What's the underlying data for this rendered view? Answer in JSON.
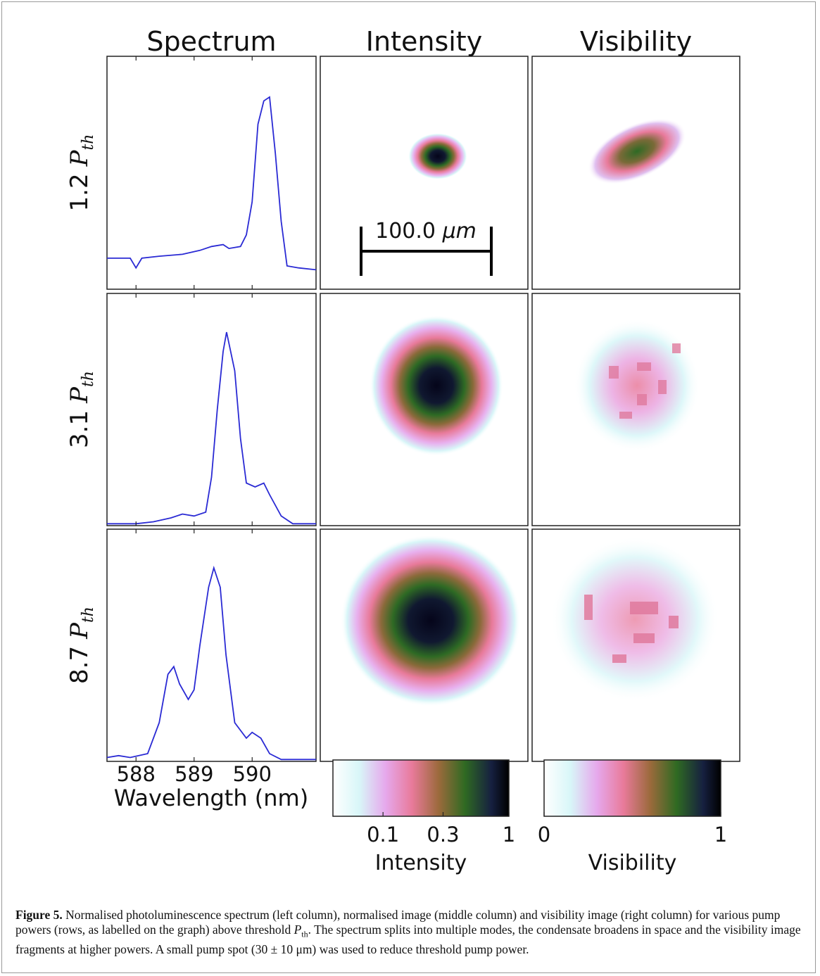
{
  "figure": {
    "column_titles": [
      "Spectrum",
      "Intensity",
      "Visibility"
    ],
    "rows": [
      {
        "label": {
          "number": "1.2",
          "symbol": "P",
          "subscript": "th"
        },
        "spectrum": {
          "x": [
            587.5,
            587.9,
            588.0,
            588.1,
            588.4,
            588.8,
            589.1,
            589.3,
            589.5,
            589.6,
            589.8,
            589.9,
            590.0,
            590.1,
            590.2,
            590.3,
            590.4,
            590.5,
            590.6,
            590.8,
            591.1
          ],
          "values": [
            0.16,
            0.16,
            0.11,
            0.16,
            0.17,
            0.18,
            0.2,
            0.22,
            0.23,
            0.21,
            0.22,
            0.28,
            0.45,
            0.85,
            0.97,
            0.99,
            0.7,
            0.35,
            0.12,
            0.11,
            0.1
          ]
        }
      },
      {
        "label": {
          "number": "3.1",
          "symbol": "P",
          "subscript": "th"
        },
        "spectrum": {
          "x": [
            587.5,
            588.0,
            588.3,
            588.6,
            588.8,
            589.0,
            589.2,
            589.3,
            589.4,
            589.5,
            589.56,
            589.7,
            589.8,
            589.9,
            590.05,
            590.2,
            590.3,
            590.5,
            590.7,
            591.1
          ],
          "values": [
            0.01,
            0.01,
            0.02,
            0.04,
            0.06,
            0.05,
            0.07,
            0.25,
            0.6,
            0.9,
            1.0,
            0.8,
            0.45,
            0.22,
            0.2,
            0.22,
            0.16,
            0.05,
            0.01,
            0.01
          ]
        }
      },
      {
        "label": {
          "number": "8.7",
          "symbol": "P",
          "subscript": "th"
        },
        "spectrum": {
          "x": [
            587.5,
            587.7,
            587.9,
            588.2,
            588.4,
            588.55,
            588.65,
            588.75,
            588.9,
            589.0,
            589.1,
            589.25,
            589.34,
            589.45,
            589.55,
            589.7,
            589.9,
            590.0,
            590.15,
            590.3,
            590.5,
            591.1
          ],
          "values": [
            0.02,
            0.03,
            0.02,
            0.04,
            0.2,
            0.45,
            0.49,
            0.4,
            0.32,
            0.37,
            0.6,
            0.9,
            1.0,
            0.9,
            0.55,
            0.2,
            0.12,
            0.15,
            0.12,
            0.04,
            0.01,
            0.01
          ]
        }
      }
    ],
    "spectrum_axis": {
      "xlim": [
        587.5,
        591.1
      ],
      "ylim": [
        0,
        1.2
      ],
      "xticks": [
        588,
        589,
        590
      ],
      "xlabel": "Wavelength (nm)",
      "color": "#2a2ad4"
    },
    "scale_bar": {
      "value": "100.0",
      "unit": "μm"
    },
    "colorbars": [
      {
        "label": "Intensity",
        "lim": [
          0.04,
          1
        ],
        "log": true,
        "ticks": [
          0.1,
          0.3,
          1
        ]
      },
      {
        "label": "Visibility",
        "lim": [
          0,
          1
        ],
        "log": false,
        "ticks": [
          0,
          1
        ]
      }
    ]
  },
  "caption": {
    "label": "Figure 5.",
    "text_1": "Normalised photoluminescence spectrum (left column), normalised image (middle column) and visibility image (right column) for various pump powers (rows, as labelled on the graph) above threshold",
    "symbol": "P",
    "subscript": "th",
    "text_2": ". The spectrum splits into multiple modes, the condensate broadens in space and the visibility image fragments at higher powers. A small pump spot (30 ± 10 μm) was used to reduce threshold pump power."
  }
}
